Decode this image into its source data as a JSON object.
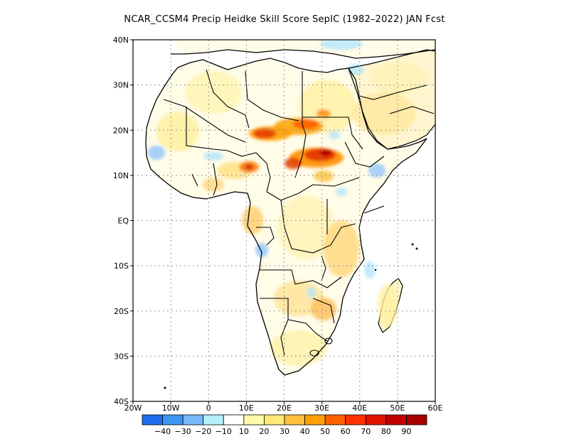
{
  "title": "NCAR_CCSM4 Precip Heidke Skill Score SepIC (1982–2022) JAN Fcst",
  "map": {
    "lat_labels": [
      "40N",
      "30N",
      "20N",
      "10N",
      "EQ",
      "10S",
      "20S",
      "30S",
      "40S"
    ],
    "lon_labels": [
      "20W",
      "10W",
      "0",
      "10E",
      "20E",
      "30E",
      "40E",
      "50E",
      "60E"
    ],
    "lon_range": [
      -20,
      60
    ],
    "lat_range": [
      -40,
      40
    ],
    "gridlines": true
  },
  "colorbar": {
    "labels": [
      "−40",
      "−30",
      "−20",
      "−10",
      "10",
      "20",
      "30",
      "40",
      "50",
      "60",
      "70",
      "80",
      "90"
    ],
    "colors": [
      "#1e6eeb",
      "#3c96f5",
      "#78b9fa",
      "#b4f0fa",
      "#ffffff",
      "#fffaaa",
      "#ffe878",
      "#ffc03c",
      "#ffa000",
      "#ff6000",
      "#ff3200",
      "#e11400",
      "#c00000",
      "#a50000"
    ]
  }
}
